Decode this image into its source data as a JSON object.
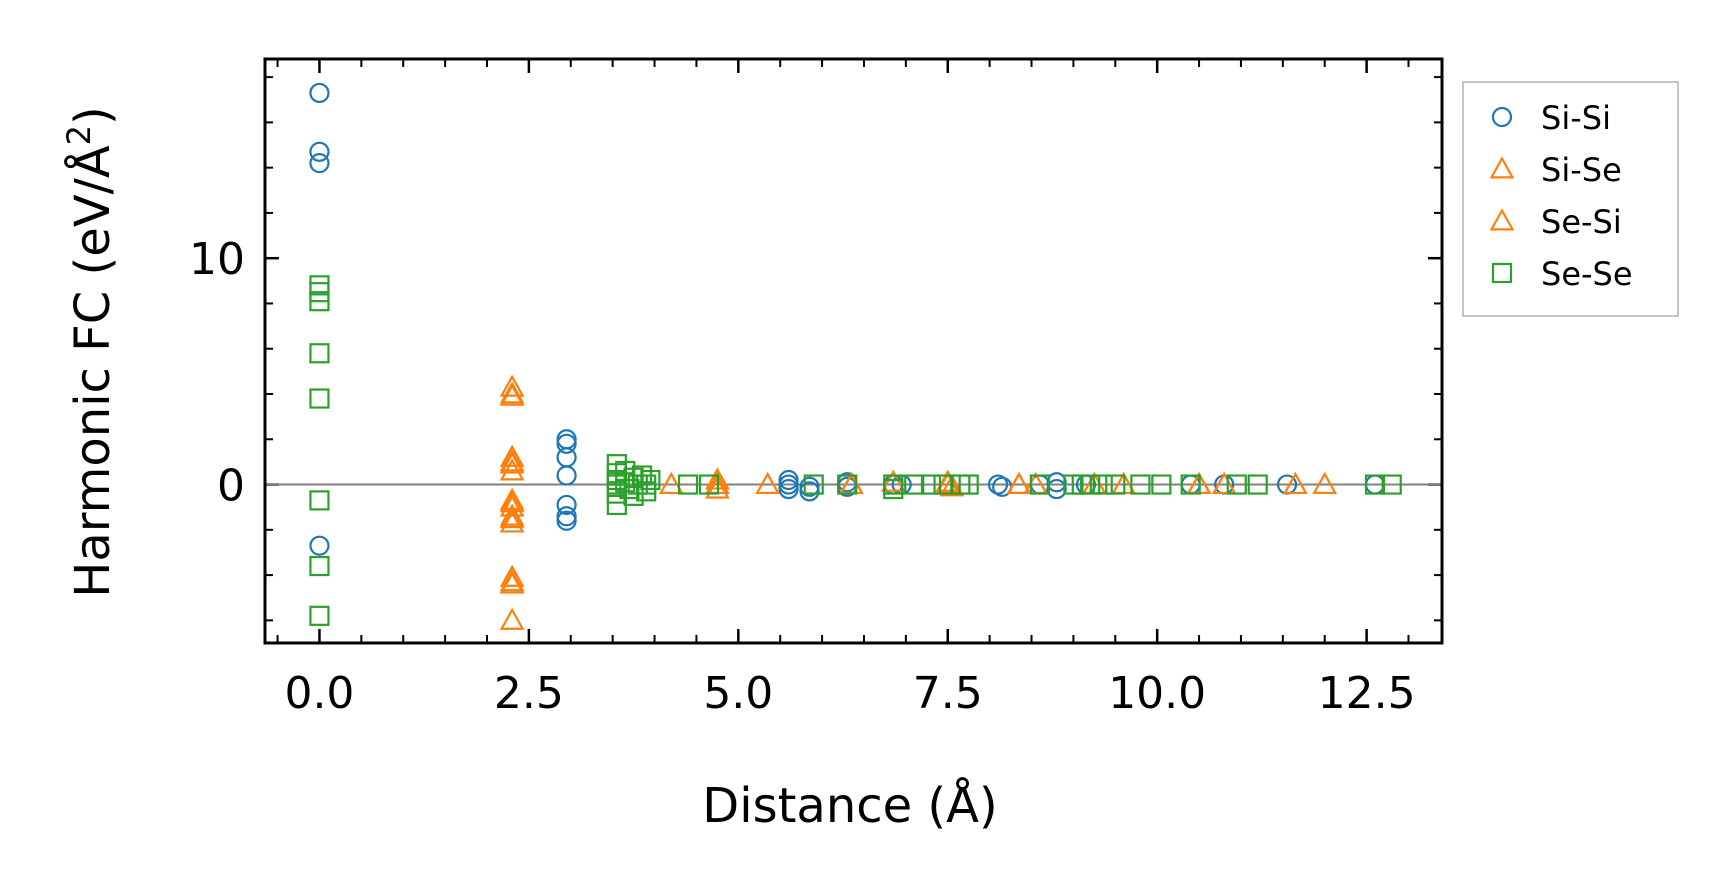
{
  "chart_data": {
    "type": "scatter",
    "title": "",
    "xlabel": "Distance (Å)",
    "ylabel_prefix": "Harmonic FC (eV/Å",
    "ylabel_sup": "2",
    "ylabel_suffix": ")",
    "xlim": [
      -0.65,
      13.4
    ],
    "ylim": [
      -7.0,
      18.8
    ],
    "xticks": [
      0.0,
      2.5,
      5.0,
      7.5,
      10.0,
      12.5
    ],
    "xtick_labels": [
      "0.0",
      "2.5",
      "5.0",
      "7.5",
      "10.0",
      "12.5"
    ],
    "yticks": [
      0,
      10
    ],
    "ytick_labels": [
      "0",
      "10"
    ],
    "reference_line_y": 0,
    "legend_position": "outside-right",
    "series": [
      {
        "name": "Si-Si",
        "marker": "circle",
        "color": "#1f77b4",
        "points": [
          [
            0.0,
            17.3
          ],
          [
            0.0,
            14.7
          ],
          [
            0.0,
            14.2
          ],
          [
            0.0,
            -2.7
          ],
          [
            2.95,
            2.0
          ],
          [
            2.95,
            1.8
          ],
          [
            2.95,
            1.2
          ],
          [
            2.95,
            0.4
          ],
          [
            2.95,
            -0.9
          ],
          [
            2.95,
            -1.4
          ],
          [
            2.95,
            -1.6
          ],
          [
            5.6,
            0.2
          ],
          [
            5.6,
            0.0
          ],
          [
            5.6,
            -0.2
          ],
          [
            5.85,
            -0.3
          ],
          [
            5.85,
            -0.1
          ],
          [
            6.3,
            0.1
          ],
          [
            6.3,
            -0.1
          ],
          [
            6.85,
            0.0
          ],
          [
            6.95,
            0.0
          ],
          [
            8.1,
            0.0
          ],
          [
            8.15,
            -0.1
          ],
          [
            8.6,
            0.0
          ],
          [
            8.8,
            0.1
          ],
          [
            8.8,
            -0.2
          ],
          [
            9.15,
            0.0
          ],
          [
            10.4,
            0.0
          ],
          [
            10.8,
            0.0
          ],
          [
            11.55,
            0.0
          ],
          [
            12.6,
            0.0
          ]
        ]
      },
      {
        "name": "Si-Se",
        "marker": "triangle",
        "color": "#ff7f0e",
        "points": [
          [
            2.3,
            4.3
          ],
          [
            2.3,
            4.0
          ],
          [
            2.3,
            1.2
          ],
          [
            2.3,
            0.9
          ],
          [
            2.3,
            0.6
          ],
          [
            2.3,
            -0.7
          ],
          [
            2.3,
            -1.0
          ],
          [
            2.3,
            -1.4
          ],
          [
            2.3,
            -1.7
          ],
          [
            2.3,
            -4.1
          ],
          [
            2.3,
            -4.4
          ],
          [
            2.3,
            -6.0
          ],
          [
            4.2,
            0.0
          ],
          [
            4.75,
            0.2
          ],
          [
            4.75,
            -0.2
          ],
          [
            5.35,
            0.0
          ],
          [
            6.35,
            0.0
          ],
          [
            6.85,
            0.1
          ],
          [
            7.5,
            0.1
          ],
          [
            7.55,
            -0.1
          ],
          [
            8.35,
            0.0
          ],
          [
            8.55,
            0.0
          ],
          [
            9.25,
            0.0
          ],
          [
            9.6,
            0.0
          ],
          [
            10.5,
            0.0
          ],
          [
            10.8,
            0.0
          ],
          [
            11.65,
            0.0
          ],
          [
            12.0,
            0.0
          ]
        ]
      },
      {
        "name": "Se-Si",
        "marker": "triangle",
        "color": "#ff7f0e",
        "points": [
          [
            2.3,
            3.9
          ],
          [
            2.3,
            1.0
          ],
          [
            2.3,
            -0.8
          ],
          [
            2.3,
            -1.5
          ],
          [
            2.3,
            -4.3
          ],
          [
            4.75,
            0.0
          ],
          [
            6.35,
            0.0
          ],
          [
            7.5,
            0.0
          ],
          [
            8.35,
            0.0
          ],
          [
            10.5,
            0.0
          ]
        ]
      },
      {
        "name": "Se-Se",
        "marker": "square",
        "color": "#2ca02c",
        "points": [
          [
            0.0,
            8.8
          ],
          [
            0.0,
            8.5
          ],
          [
            0.0,
            8.1
          ],
          [
            0.0,
            5.8
          ],
          [
            0.0,
            3.8
          ],
          [
            0.0,
            -0.7
          ],
          [
            0.0,
            -3.6
          ],
          [
            0.0,
            -5.8
          ],
          [
            3.55,
            0.9
          ],
          [
            3.55,
            0.5
          ],
          [
            3.55,
            0.2
          ],
          [
            3.55,
            0.0
          ],
          [
            3.55,
            -0.4
          ],
          [
            3.55,
            -0.9
          ],
          [
            3.65,
            0.6
          ],
          [
            3.65,
            0.1
          ],
          [
            3.7,
            -0.2
          ],
          [
            3.75,
            0.3
          ],
          [
            3.75,
            -0.5
          ],
          [
            3.8,
            0.0
          ],
          [
            3.85,
            0.4
          ],
          [
            3.9,
            -0.3
          ],
          [
            3.9,
            0.0
          ],
          [
            3.95,
            0.2
          ],
          [
            4.4,
            0.0
          ],
          [
            4.65,
            0.0
          ],
          [
            5.9,
            0.0
          ],
          [
            6.3,
            0.0
          ],
          [
            6.85,
            0.0
          ],
          [
            6.85,
            -0.2
          ],
          [
            7.1,
            0.0
          ],
          [
            7.3,
            0.0
          ],
          [
            7.45,
            0.0
          ],
          [
            7.65,
            0.0
          ],
          [
            7.75,
            0.0
          ],
          [
            8.6,
            0.0
          ],
          [
            9.0,
            0.0
          ],
          [
            9.1,
            0.0
          ],
          [
            9.2,
            0.0
          ],
          [
            9.35,
            0.0
          ],
          [
            9.5,
            0.0
          ],
          [
            9.8,
            0.0
          ],
          [
            10.05,
            0.0
          ],
          [
            10.4,
            0.0
          ],
          [
            10.95,
            0.0
          ],
          [
            11.2,
            0.0
          ],
          [
            12.6,
            0.0
          ],
          [
            12.8,
            0.0
          ]
        ]
      }
    ]
  },
  "legend": {
    "items": [
      {
        "label": "Si-Si"
      },
      {
        "label": "Si-Se"
      },
      {
        "label": "Se-Si"
      },
      {
        "label": "Se-Se"
      }
    ]
  },
  "colors": {
    "si_si": "#1f77b4",
    "si_se": "#ff7f0e",
    "se_se": "#2ca02c",
    "zero_line": "#808080",
    "axes": "#000000"
  }
}
